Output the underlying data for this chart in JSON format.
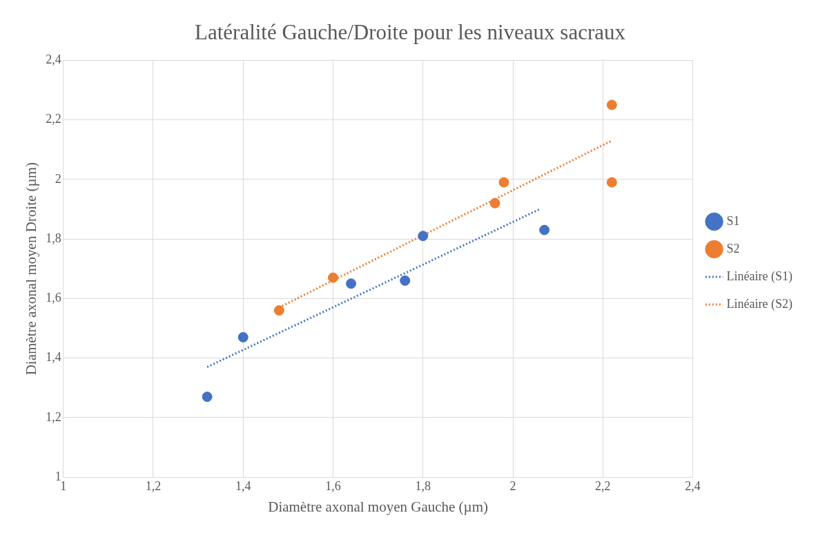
{
  "chart_data": {
    "type": "scatter",
    "title": "Latéralité Gauche/Droite pour les niveaux sacraux",
    "xlabel": "Diamètre axonal moyen Gauche (µm)",
    "ylabel": "Diamètre axonal moyen Droite (µm)",
    "xlim": [
      1,
      2.4
    ],
    "ylim": [
      1,
      2.4
    ],
    "xticks": [
      1,
      {
        "value": 1.2,
        "label": "1,2"
      },
      {
        "value": 1.4,
        "label": "1,4"
      },
      {
        "value": 1.6,
        "label": "1,6"
      },
      {
        "value": 1.8,
        "label": "1,8"
      },
      2,
      {
        "value": 2.2,
        "label": "2,2"
      },
      {
        "value": 2.4,
        "label": "2,4"
      }
    ],
    "yticks": [
      1,
      {
        "value": 1.2,
        "label": "1,2"
      },
      {
        "value": 1.4,
        "label": "1,4"
      },
      {
        "value": 1.6,
        "label": "1,6"
      },
      {
        "value": 1.8,
        "label": "1,8"
      },
      2,
      {
        "value": 2.2,
        "label": "2,2"
      },
      {
        "value": 2.4,
        "label": "2,4"
      }
    ],
    "grid": true,
    "legend": "right",
    "marker": "circle",
    "series": [
      {
        "name": "S1",
        "color": "#4472c4",
        "x": [
          1.32,
          1.4,
          1.64,
          1.76,
          1.8,
          2.07
        ],
        "values": [
          1.27,
          1.47,
          1.65,
          1.66,
          1.81,
          1.83
        ]
      },
      {
        "name": "S2",
        "color": "#ed7d31",
        "x": [
          1.48,
          1.6,
          1.96,
          1.98,
          2.22,
          2.22
        ],
        "values": [
          1.56,
          1.67,
          1.92,
          1.99,
          2.25,
          1.99
        ]
      },
      {
        "name": "Linéaire (S1)",
        "type": "line",
        "color": "#4472c4",
        "line_style": "dotted",
        "marker": "none",
        "x": [
          1.32,
          2.06
        ],
        "values": [
          1.37,
          1.9
        ]
      },
      {
        "name": "Linéaire (S2)",
        "type": "line",
        "color": "#ed7d31",
        "line_style": "dotted",
        "marker": "none",
        "x": [
          1.48,
          2.22
        ],
        "values": [
          1.57,
          2.13
        ]
      }
    ]
  }
}
